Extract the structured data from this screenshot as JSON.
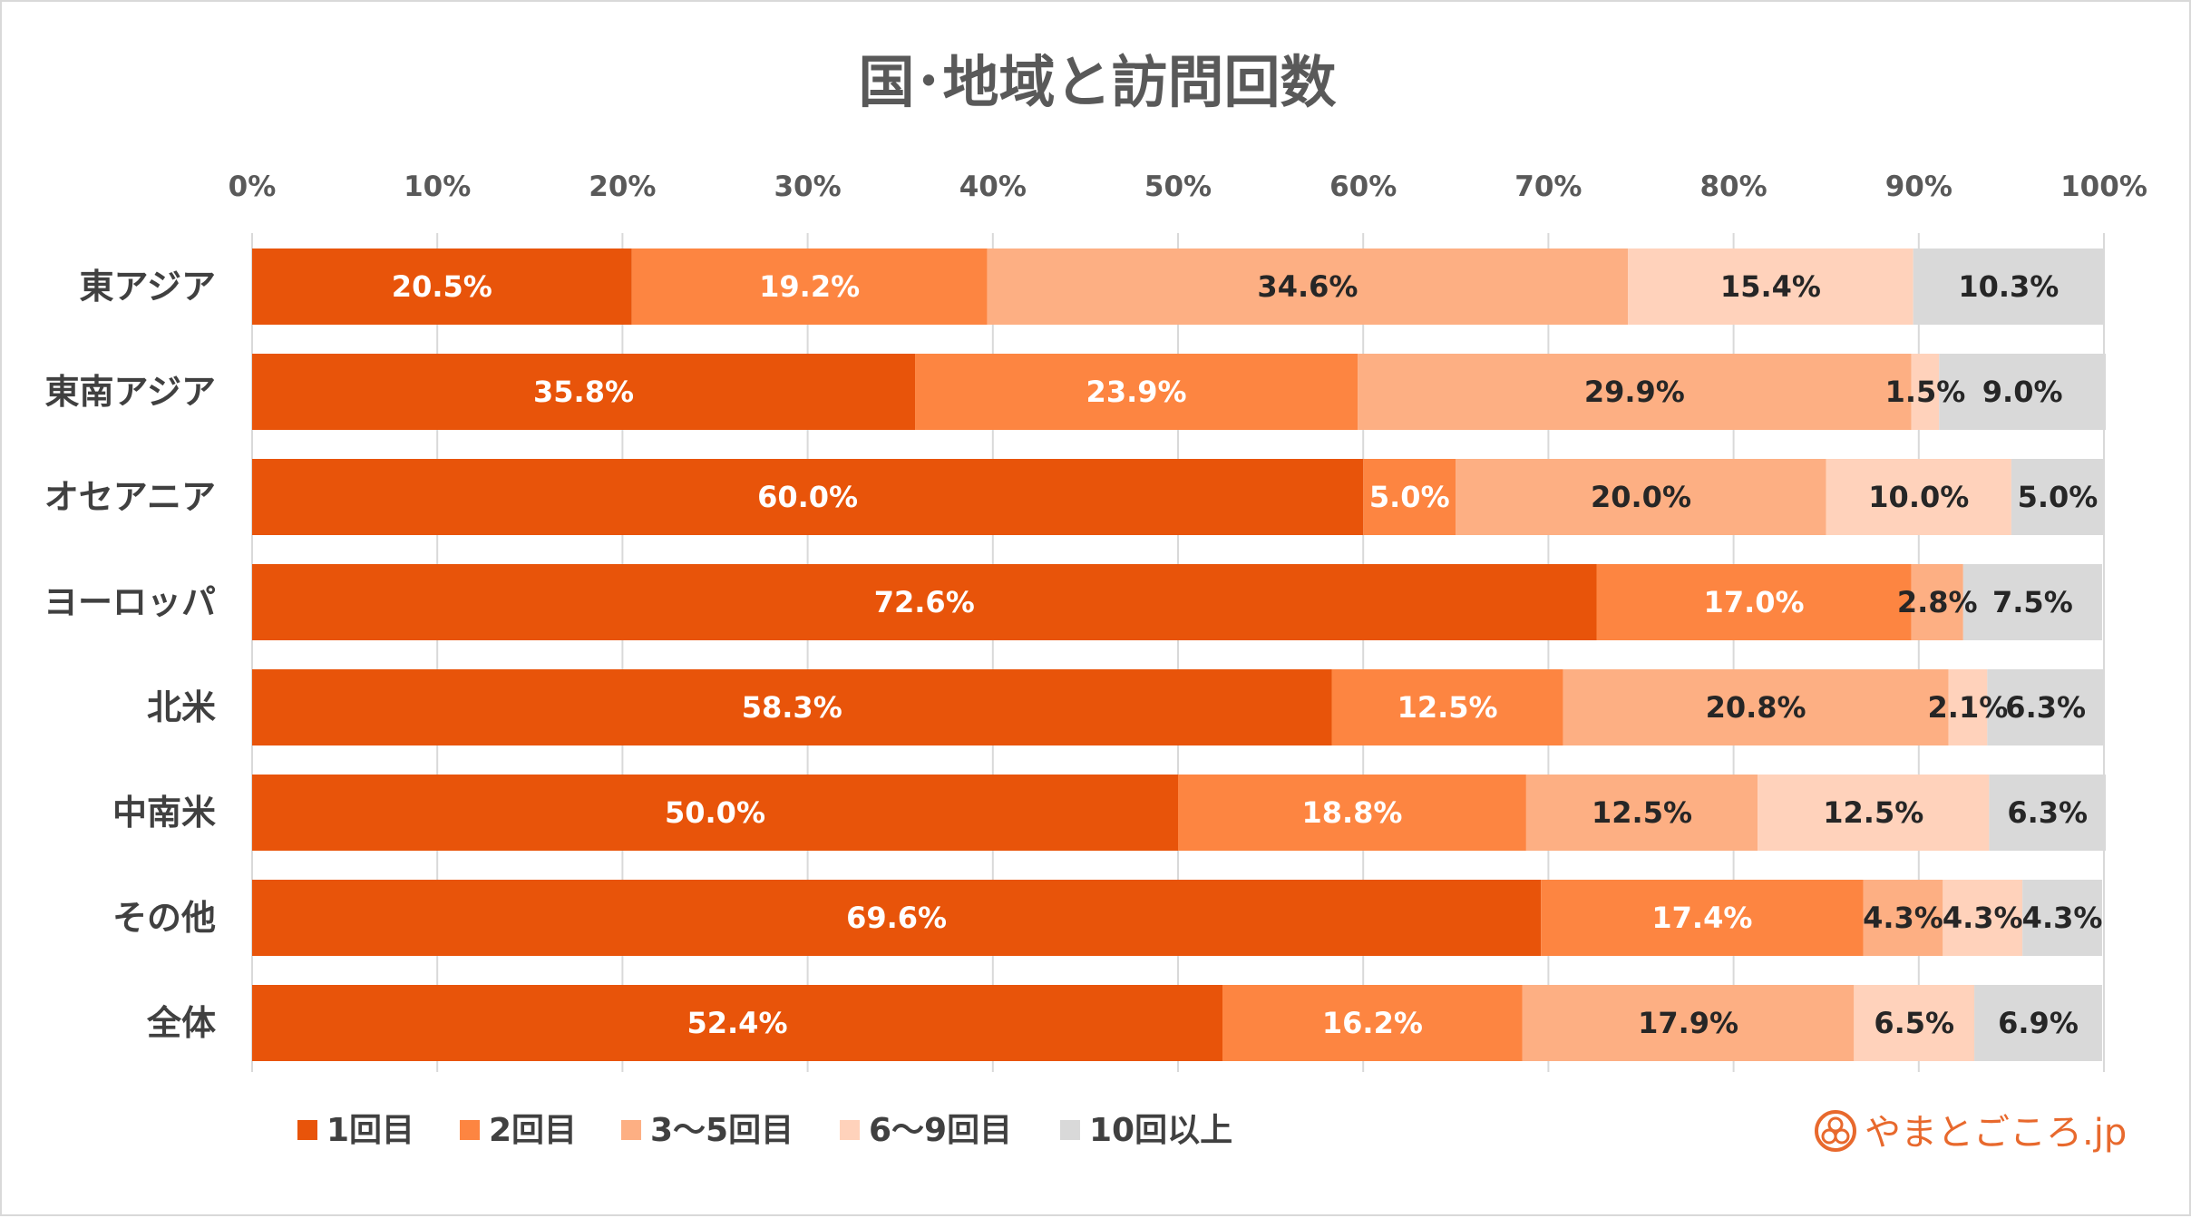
{
  "chart_data": {
    "type": "bar",
    "orientation": "horizontal",
    "stacked": true,
    "title": "国･地域と訪問回数",
    "categories": [
      "東アジア",
      "東南アジア",
      "オセアニア",
      "ヨーロッパ",
      "北米",
      "中南米",
      "その他",
      "全体"
    ],
    "series": [
      {
        "name": "1回目",
        "color": "#e8540a",
        "label_color": "#ffffff",
        "values": [
          20.5,
          35.8,
          60.0,
          72.6,
          58.3,
          50.0,
          69.6,
          52.4
        ]
      },
      {
        "name": "2回目",
        "color": "#fd8541",
        "label_color": "#ffffff",
        "values": [
          19.2,
          23.9,
          5.0,
          17.0,
          12.5,
          18.8,
          17.4,
          16.2
        ]
      },
      {
        "name": "3〜5回目",
        "color": "#fdaf83",
        "label_color": "#262626",
        "values": [
          34.6,
          29.9,
          20.0,
          2.8,
          20.8,
          12.5,
          4.3,
          17.9
        ]
      },
      {
        "name": "6〜9回目",
        "color": "#ffd2bb",
        "label_color": "#262626",
        "values": [
          15.4,
          1.5,
          10.0,
          0.0,
          2.1,
          12.5,
          4.3,
          6.5
        ]
      },
      {
        "name": "10回以上",
        "color": "#d9d9d9",
        "label_color": "#262626",
        "values": [
          10.3,
          9.0,
          5.0,
          7.5,
          6.3,
          6.3,
          4.3,
          6.9
        ]
      }
    ],
    "value_labels": [
      [
        "20.5%",
        "35.8%",
        "60.0%",
        "72.6%",
        "58.3%",
        "50.0%",
        "69.6%",
        "52.4%"
      ],
      [
        "19.2%",
        "23.9%",
        "5.0%",
        "17.0%",
        "12.5%",
        "18.8%",
        "17.4%",
        "16.2%"
      ],
      [
        "34.6%",
        "29.9%",
        "20.0%",
        "2.8%",
        "20.8%",
        "12.5%",
        "4.3%",
        "17.9%"
      ],
      [
        "15.4%",
        "1.5%",
        "10.0%",
        "",
        "2.1%",
        "12.5%",
        "4.3%",
        "6.5%"
      ],
      [
        "10.3%",
        "9.0%",
        "5.0%",
        "7.5%",
        "6.3%",
        "6.3%",
        "4.3%",
        "6.9%"
      ]
    ],
    "xlim": [
      0,
      100
    ],
    "x_ticks": [
      "0%",
      "10%",
      "20%",
      "30%",
      "40%",
      "50%",
      "60%",
      "70%",
      "80%",
      "90%",
      "100%"
    ],
    "grid": true,
    "legend_position": "bottom-left"
  },
  "branding": {
    "logo_text": "やまとごころ.jp",
    "accent_color": "#e8692d"
  }
}
